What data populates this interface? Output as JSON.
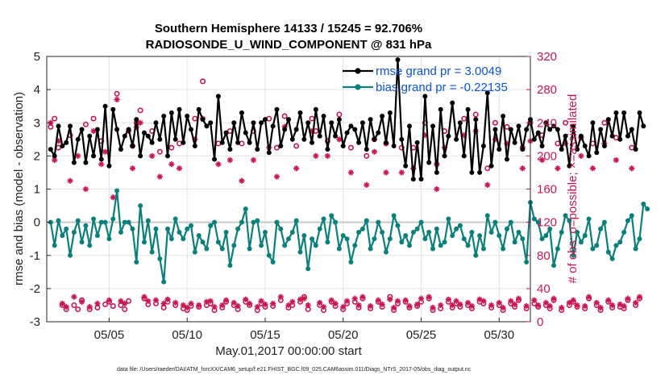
{
  "chart_data": {
    "type": "line",
    "title": "Southern Hemisphere 14133 / 15245 = 92.706%",
    "subtitle": "RADIOSONDE_U_WIND_COMPONENT @ 831 hPa",
    "xlabel": "May.01,2017 00:00:00 start",
    "ylabel_left": "rmse and bias (model - observation)",
    "ylabel_right": "# of obs: o=possible; ×=assimilated",
    "ylim_left": [
      -3,
      5
    ],
    "ylim_right": [
      0,
      320
    ],
    "xlim": [
      1,
      32
    ],
    "left_ticks": [
      "-3",
      "-2",
      "-1",
      "0",
      "1",
      "2",
      "3",
      "4",
      "5"
    ],
    "right_ticks": [
      "0",
      "40",
      "80",
      "120",
      "160",
      "200",
      "240",
      "280",
      "320"
    ],
    "x_ticks": [
      {
        "value": 5,
        "label": "05/05"
      },
      {
        "value": 10,
        "label": "05/10"
      },
      {
        "value": 15,
        "label": "05/15"
      },
      {
        "value": 20,
        "label": "05/20"
      },
      {
        "value": 25,
        "label": "05/25"
      },
      {
        "value": 30,
        "label": "05/30"
      }
    ],
    "x_start": 1.25,
    "x_step": 0.25,
    "series": [
      {
        "name": "rmse grand pr = 3.0049",
        "axis": "left",
        "color": "#000000",
        "values": [
          2.2,
          2.0,
          2.9,
          2.3,
          2.4,
          2.9,
          1.8,
          2.5,
          2.8,
          1.8,
          2.6,
          2.0,
          2.8,
          1.9,
          3.5,
          1.7,
          3.4,
          2.8,
          2.2,
          2.6,
          2.8,
          2.3,
          3.1,
          2.0,
          2.7,
          2.6,
          2.4,
          3.0,
          2.5,
          3.2,
          2.0,
          3.3,
          2.5,
          3.4,
          2.4,
          3.2,
          2.8,
          2.3,
          3.4,
          3.1,
          2.9,
          3.0,
          1.9,
          3.8,
          2.4,
          2.7,
          2.2,
          3.0,
          2.4,
          3.3,
          2.7,
          2.4,
          3.0,
          2.2,
          3.0,
          3.1,
          2.1,
          2.9,
          3.4,
          2.3,
          2.8,
          3.1,
          2.5,
          2.8,
          3.3,
          2.5,
          3.0,
          2.4,
          3.4,
          2.6,
          3.2,
          2.2,
          3.0,
          2.6,
          3.1,
          2.3,
          2.7,
          2.9,
          2.8,
          2.4,
          3.0,
          2.2,
          3.1,
          2.5,
          2.7,
          3.2,
          2.4,
          3.3,
          2.3,
          4.9,
          2.5,
          1.7,
          2.9,
          1.3,
          2.4,
          1.3,
          3.8,
          1.8,
          2.9,
          1.5,
          3.4,
          2.0,
          2.6,
          3.6,
          2.5,
          3.0,
          2.0,
          3.4,
          1.5,
          3.1,
          1.5,
          2.3,
          3.9,
          1.7,
          2.8,
          2.2,
          3.2,
          1.9,
          2.8,
          2.4,
          2.9,
          2.2,
          2.8,
          3.1,
          2.5,
          2.7,
          2.3,
          3.0,
          2.8,
          2.9,
          2.8,
          2.2,
          2.6,
          1.7,
          2.9,
          2.2,
          2.6,
          2.3,
          2.0,
          3.0,
          2.1,
          2.8,
          2.3,
          3.1,
          2.6,
          3.3,
          2.5,
          3.3,
          2.6,
          2.8,
          2.2,
          3.3,
          2.9
        ]
      },
      {
        "name": "bias grand pr = -0.22135",
        "axis": "left",
        "color": "#0b7f7b",
        "values": [
          0.0,
          -0.7,
          0.05,
          -0.4,
          -0.2,
          -1.0,
          -0.3,
          0.05,
          -0.6,
          -0.1,
          -0.7,
          0.1,
          -0.4,
          0.0,
          0.0,
          -0.5,
          0.1,
          0.95,
          -0.3,
          0.0,
          0.0,
          -0.2,
          -1.2,
          0.5,
          -0.6,
          0.05,
          -0.9,
          -0.2,
          -1.1,
          -1.8,
          -0.2,
          -0.5,
          0.1,
          -0.3,
          -0.5,
          -0.2,
          -0.1,
          -0.9,
          -0.4,
          -0.6,
          -0.8,
          -0.1,
          0.0,
          -0.6,
          -0.8,
          -0.3,
          -1.3,
          -0.7,
          -0.2,
          0.0,
          0.4,
          -0.8,
          0.0,
          0.05,
          -0.7,
          -0.3,
          -1.0,
          -1.2,
          0.0,
          -0.2,
          -0.7,
          -0.5,
          -0.3,
          0.05,
          -0.9,
          -0.4,
          -1.4,
          -0.5,
          -0.7,
          -0.2,
          0.1,
          -0.6,
          0.2,
          0.0,
          -0.8,
          -0.4,
          -0.5,
          -1.2,
          -0.7,
          -0.3,
          -0.2,
          0.05,
          -0.8,
          -0.5,
          0.0,
          -0.3,
          -0.9,
          -0.5,
          0.2,
          -0.1,
          -0.6,
          -0.4,
          -0.7,
          -0.3,
          -0.2,
          0.0,
          -0.5,
          -0.3,
          -0.8,
          -0.2,
          -0.7,
          -0.6,
          0.1,
          -0.4,
          -0.2,
          -0.1,
          -0.5,
          -0.7,
          -0.3,
          -1.0,
          -0.4,
          -0.8,
          0.2,
          -0.3,
          0.0,
          -0.4,
          -0.8,
          -0.2,
          0.0,
          -0.6,
          -0.3,
          -0.5,
          -1.2,
          0.6,
          0.1,
          0.0,
          -0.5,
          -0.4,
          -0.2,
          -1.3,
          -0.8,
          -0.3,
          0.2,
          0.05,
          -1.0,
          -0.3,
          -0.6,
          -0.4,
          0.1,
          -0.8,
          -0.7,
          -0.2,
          0.0,
          -0.9,
          -1.1,
          -0.7,
          -0.6,
          -0.3,
          0.05,
          0.2,
          -0.8,
          -0.5,
          0.55,
          0.4
        ]
      },
      {
        "name": "possible obs (o)",
        "axis": "right",
        "color": "#c8174f",
        "values": [
          235,
          245,
          210,
          20,
          15,
          225,
          20,
          15,
          26,
          238,
          15,
          245,
          17,
          218,
          21,
          24,
          19,
          275,
          20,
          15,
          25,
          212,
          240,
          255,
          28,
          21,
          230,
          22,
          205,
          17,
          24,
          210,
          20,
          215,
          16,
          14,
          19,
          245,
          18,
          290,
          20,
          22,
          14,
          215,
          17,
          24,
          230,
          20,
          15,
          215,
          24,
          20,
          230,
          14,
          22,
          18,
          245,
          19,
          210,
          26,
          248,
          17,
          20,
          212,
          24,
          30,
          15,
          245,
          230,
          20,
          14,
          218,
          24,
          19,
          250,
          15,
          22,
          210,
          24,
          17,
          28,
          200,
          16,
          220,
          24,
          18,
          215,
          30,
          14,
          22,
          210,
          24,
          17,
          210,
          19,
          24,
          240,
          28,
          14,
          190,
          16,
          230,
          24,
          17,
          22,
          18,
          245,
          20,
          16,
          250,
          24,
          22,
          185,
          17,
          240,
          20,
          14,
          235,
          22,
          18,
          26,
          210,
          16,
          240,
          22,
          18,
          225,
          20,
          16,
          26,
          215,
          14,
          240,
          20,
          24,
          18,
          222,
          16,
          28,
          215,
          20,
          14,
          240,
          24,
          17,
          222,
          18,
          16,
          26,
          210,
          20,
          28
        ]
      },
      {
        "name": "assimilated obs (×)",
        "axis": "right",
        "color": "#c8174f",
        "values": [
          240,
          195,
          218,
          22,
          18,
          170,
          30,
          200,
          24,
          160,
          18,
          230,
          22,
          190,
          205,
          26,
          150,
          268,
          25,
          22,
          230,
          185,
          235,
          240,
          30,
          25,
          200,
          26,
          175,
          22,
          27,
          190,
          23,
          185,
          20,
          17,
          22,
          220,
          20,
          245,
          24,
          25,
          18,
          190,
          20,
          26,
          195,
          23,
          19,
          170,
          27,
          22,
          195,
          18,
          25,
          21,
          210,
          22,
          175,
          30,
          235,
          20,
          24,
          185,
          27,
          28,
          20,
          230,
          200,
          23,
          18,
          200,
          26,
          22,
          220,
          18,
          25,
          180,
          28,
          20,
          30,
          165,
          19,
          205,
          26,
          21,
          180,
          27,
          17,
          25,
          180,
          26,
          19,
          185,
          21,
          28,
          225,
          30,
          17,
          160,
          20,
          210,
          27,
          20,
          25,
          21,
          225,
          23,
          19,
          230,
          27,
          25,
          165,
          20,
          220,
          23,
          17,
          215,
          25,
          21,
          28,
          185,
          19,
          218,
          26,
          20,
          195,
          23,
          19,
          28,
          185,
          17,
          215,
          23,
          26,
          20,
          200,
          19,
          30,
          185,
          23,
          17,
          215,
          26,
          20,
          195,
          21,
          19,
          28,
          185,
          23,
          30
        ]
      }
    ]
  },
  "footnote": "data file: /Users/raeder/DAI/ATM_forcXX/CAM6_setup/f.e21.FHIST_BGC.f09_025.CAM6assim.011/Diags_NTrS_2017-05/obs_diag_output.nc"
}
